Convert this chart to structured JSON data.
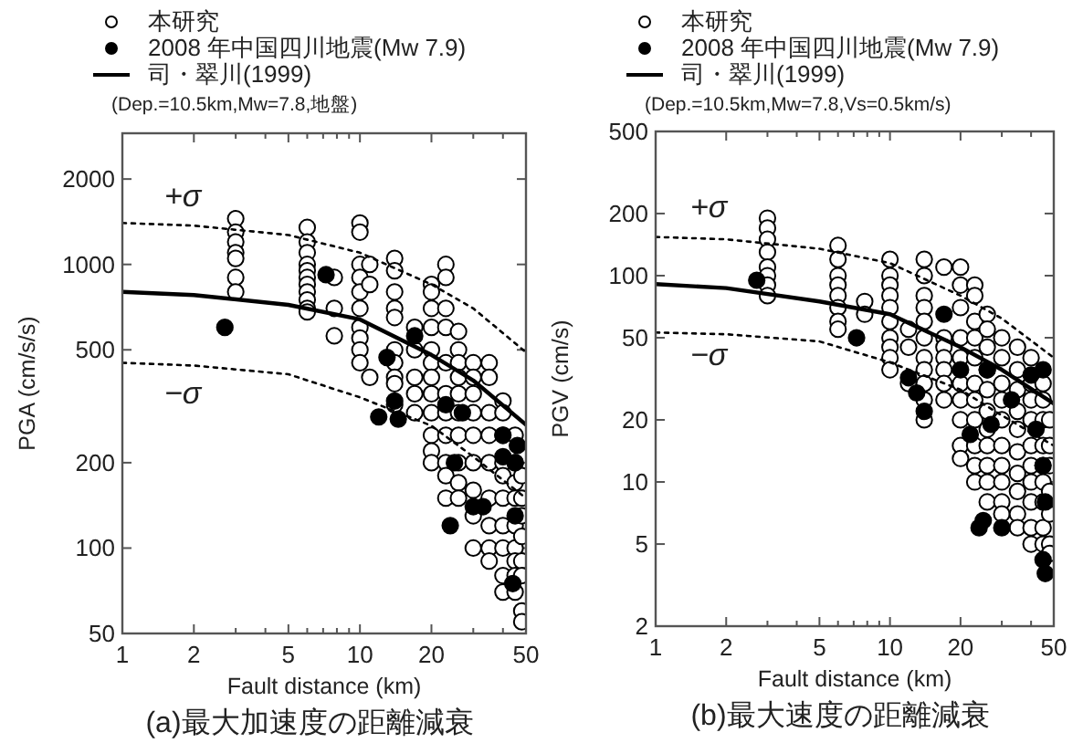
{
  "chart_data": [
    {
      "type": "scatter",
      "title": "(a)最大加速度の距離減衰",
      "xlabel": "Fault distance (km)",
      "ylabel": "PGA (cm/s/s)",
      "log": "xy",
      "xlim": [
        1,
        50
      ],
      "ylim": [
        50,
        2900
      ],
      "xticks": [
        1,
        2,
        {
          "value": 3,
          "label": null
        },
        {
          "value": 4,
          "label": null
        },
        5,
        {
          "value": 6,
          "label": null
        },
        {
          "value": 7,
          "label": null
        },
        {
          "value": 8,
          "label": null
        },
        {
          "value": 9,
          "label": null
        },
        10,
        20,
        {
          "value": 30,
          "label": null
        },
        {
          "value": 40,
          "label": null
        },
        50
      ],
      "yticks": [
        50,
        100,
        200,
        500,
        1000,
        2000
      ],
      "grid": false,
      "legend": "top",
      "marker": "circle",
      "annotations": [
        "(Dep.=10.5km,Mw=7.8,地盤)",
        "+σ",
        "−σ"
      ],
      "series": [
        {
          "name": "本研究",
          "color": "#ffffff",
          "x": [
            3,
            3,
            3,
            3,
            3,
            3,
            3,
            6,
            6,
            6,
            6,
            6,
            6,
            6,
            6,
            6,
            6,
            6,
            7.8,
            7.8,
            7.8,
            10,
            10,
            10,
            10,
            10,
            10,
            10,
            10,
            10,
            10,
            11,
            11,
            11,
            14,
            14,
            14,
            14,
            14,
            14,
            14,
            14,
            14,
            14,
            17,
            17,
            17,
            17,
            17,
            20,
            20,
            20,
            20,
            20,
            20,
            20,
            20,
            20,
            20,
            20,
            20,
            23,
            23,
            23,
            23,
            23,
            23,
            23,
            23,
            23,
            23,
            23,
            26,
            26,
            26,
            26,
            26,
            26,
            26,
            26,
            26,
            26,
            30,
            30,
            30,
            30,
            30,
            30,
            30,
            30,
            30,
            35,
            35,
            35,
            35,
            35,
            35,
            35,
            35,
            35,
            40,
            40,
            40,
            40,
            40,
            40,
            40,
            40,
            40,
            40,
            45,
            45,
            45,
            45,
            45,
            45,
            45,
            45,
            45,
            48,
            48,
            48,
            48,
            48,
            48,
            48,
            48
          ],
          "values": [
            1450,
            1300,
            1200,
            1100,
            1050,
            900,
            800,
            1350,
            1200,
            1100,
            1000,
            950,
            900,
            850,
            800,
            750,
            700,
            680,
            900,
            700,
            560,
            1400,
            1300,
            1000,
            900,
            800,
            700,
            600,
            550,
            500,
            450,
            1000,
            850,
            400,
            1050,
            950,
            800,
            700,
            650,
            500,
            450,
            400,
            380,
            320,
            600,
            500,
            400,
            350,
            300,
            850,
            800,
            700,
            600,
            500,
            450,
            400,
            350,
            300,
            250,
            220,
            200,
            1000,
            900,
            700,
            600,
            450,
            350,
            300,
            250,
            200,
            180,
            150,
            580,
            500,
            450,
            400,
            350,
            300,
            250,
            200,
            170,
            150,
            450,
            400,
            350,
            300,
            250,
            200,
            160,
            130,
            100,
            450,
            400,
            300,
            250,
            200,
            150,
            120,
            100,
            90,
            330,
            300,
            250,
            200,
            180,
            150,
            120,
            100,
            80,
            70,
            250,
            200,
            170,
            150,
            120,
            100,
            90,
            80,
            70,
            180,
            150,
            130,
            110,
            90,
            80,
            60,
            55
          ]
        },
        {
          "name": "2008 年中国四川地震(Mw 7.9)",
          "color": "#000000",
          "x": [
            2.7,
            7.2,
            13,
            12,
            14,
            14.5,
            17,
            23,
            25,
            24,
            27,
            30,
            33,
            40,
            40,
            45,
            45,
            44,
            46
          ],
          "values": [
            600,
            920,
            470,
            290,
            330,
            285,
            560,
            320,
            200,
            120,
            300,
            140,
            140,
            250,
            210,
            200,
            130,
            75,
            230
          ]
        },
        {
          "name": "司・翠川(1999)",
          "type": "line",
          "color": "#000000",
          "line_style": "solid",
          "marker": "none",
          "x": [
            1,
            2,
            5,
            10,
            20,
            30,
            50
          ],
          "values": [
            800,
            780,
            720,
            640,
            480,
            390,
            272
          ]
        },
        {
          "type": "line",
          "color": "#000000",
          "line_style": "dotted",
          "marker": "none",
          "x": [
            1,
            2,
            5,
            10,
            20,
            30,
            50
          ],
          "values": [
            1400,
            1370,
            1270,
            1100,
            850,
            700,
            490
          ]
        },
        {
          "type": "line",
          "color": "#000000",
          "line_style": "dotted",
          "marker": "none",
          "x": [
            1,
            2,
            5,
            10,
            20,
            30,
            50
          ],
          "values": [
            450,
            440,
            410,
            340,
            270,
            210,
            150
          ]
        }
      ]
    },
    {
      "type": "scatter",
      "title": "(b)最大速度の距離減衰",
      "xlabel": "Fault distance (km)",
      "ylabel": "PGV (cm/s)",
      "log": "xy",
      "xlim": [
        1,
        50
      ],
      "ylim": [
        2,
        500
      ],
      "xticks": [
        1,
        2,
        {
          "value": 3,
          "label": null
        },
        {
          "value": 4,
          "label": null
        },
        5,
        {
          "value": 6,
          "label": null
        },
        {
          "value": 7,
          "label": null
        },
        {
          "value": 8,
          "label": null
        },
        {
          "value": 9,
          "label": null
        },
        10,
        20,
        {
          "value": 30,
          "label": null
        },
        {
          "value": 40,
          "label": null
        },
        50
      ],
      "yticks": [
        2,
        5,
        10,
        20,
        50,
        100,
        200,
        500
      ],
      "grid": false,
      "legend": "top",
      "marker": "circle",
      "annotations": [
        "(Dep.=10.5km,Mw=7.8,Vs=0.5km/s)",
        "+σ",
        "−σ"
      ],
      "series": [
        {
          "name": "本研究",
          "color": "#ffffff",
          "x": [
            3,
            3,
            3,
            3,
            3,
            3,
            3,
            3,
            6,
            6,
            6,
            6,
            6,
            6,
            6,
            6,
            7.8,
            7.8,
            10,
            10,
            10,
            10,
            10,
            10,
            10,
            10,
            10,
            10,
            12,
            12,
            12,
            14,
            14,
            14,
            14,
            14,
            14,
            14,
            14,
            14,
            14,
            14,
            17,
            17,
            17,
            17,
            17,
            17,
            17,
            20,
            20,
            20,
            20,
            20,
            20,
            20,
            20,
            20,
            20,
            23,
            23,
            23,
            23,
            23,
            23,
            23,
            23,
            23,
            23,
            23,
            26,
            26,
            26,
            26,
            26,
            26,
            26,
            26,
            26,
            26,
            26,
            30,
            30,
            30,
            30,
            30,
            30,
            30,
            30,
            30,
            30,
            35,
            35,
            35,
            35,
            35,
            35,
            35,
            35,
            35,
            35,
            40,
            40,
            40,
            40,
            40,
            40,
            40,
            40,
            40,
            40,
            45,
            45,
            45,
            45,
            45,
            45,
            45,
            45,
            45,
            48,
            48,
            48,
            48,
            48,
            48,
            48
          ],
          "values": [
            190,
            170,
            150,
            130,
            110,
            100,
            90,
            80,
            140,
            120,
            100,
            90,
            80,
            70,
            60,
            55,
            75,
            65,
            120,
            100,
            90,
            80,
            70,
            60,
            50,
            45,
            40,
            35,
            55,
            45,
            30,
            120,
            100,
            80,
            70,
            60,
            50,
            40,
            35,
            30,
            25,
            20,
            110,
            50,
            45,
            40,
            35,
            30,
            25,
            110,
            90,
            70,
            50,
            40,
            30,
            25,
            20,
            15,
            13,
            90,
            80,
            60,
            50,
            40,
            30,
            25,
            20,
            15,
            12,
            10,
            65,
            55,
            45,
            35,
            28,
            22,
            18,
            15,
            12,
            10,
            8,
            50,
            40,
            30,
            25,
            20,
            15,
            12,
            10,
            8,
            7,
            45,
            35,
            28,
            22,
            18,
            14,
            11,
            9,
            7,
            6,
            40,
            30,
            25,
            20,
            15,
            12,
            10,
            8,
            6,
            5,
            30,
            25,
            20,
            15,
            12,
            10,
            8,
            6,
            5,
            20,
            15,
            12,
            9,
            7,
            5,
            4.5
          ]
        },
        {
          "name": "2008 年中国四川地震(Mw 7.9)",
          "color": "#000000",
          "x": [
            2.7,
            7.2,
            12,
            13,
            14,
            17,
            20,
            22,
            24,
            25,
            26,
            27,
            30,
            33,
            40,
            42,
            45,
            45,
            46,
            45,
            46
          ],
          "values": [
            95,
            50,
            32,
            27,
            22,
            65,
            35,
            17,
            6,
            6.5,
            35,
            19,
            6,
            25,
            33,
            18,
            35,
            12,
            8,
            4.2,
            3.6
          ]
        },
        {
          "name": "司・翠川(1999)",
          "type": "line",
          "color": "#000000",
          "line_style": "solid",
          "marker": "none",
          "x": [
            1,
            2,
            5,
            10,
            20,
            30,
            50
          ],
          "values": [
            91,
            87,
            75,
            65,
            45,
            35,
            24
          ]
        },
        {
          "type": "line",
          "color": "#000000",
          "line_style": "dotted",
          "marker": "none",
          "x": [
            1,
            2,
            5,
            10,
            20,
            30,
            50
          ],
          "values": [
            154,
            150,
            135,
            115,
            80,
            62,
            40
          ]
        },
        {
          "type": "line",
          "color": "#000000",
          "line_style": "dotted",
          "marker": "none",
          "x": [
            1,
            2,
            5,
            10,
            20,
            30,
            50
          ],
          "values": [
            53,
            52,
            48,
            38,
            28,
            21,
            15
          ]
        }
      ]
    }
  ]
}
